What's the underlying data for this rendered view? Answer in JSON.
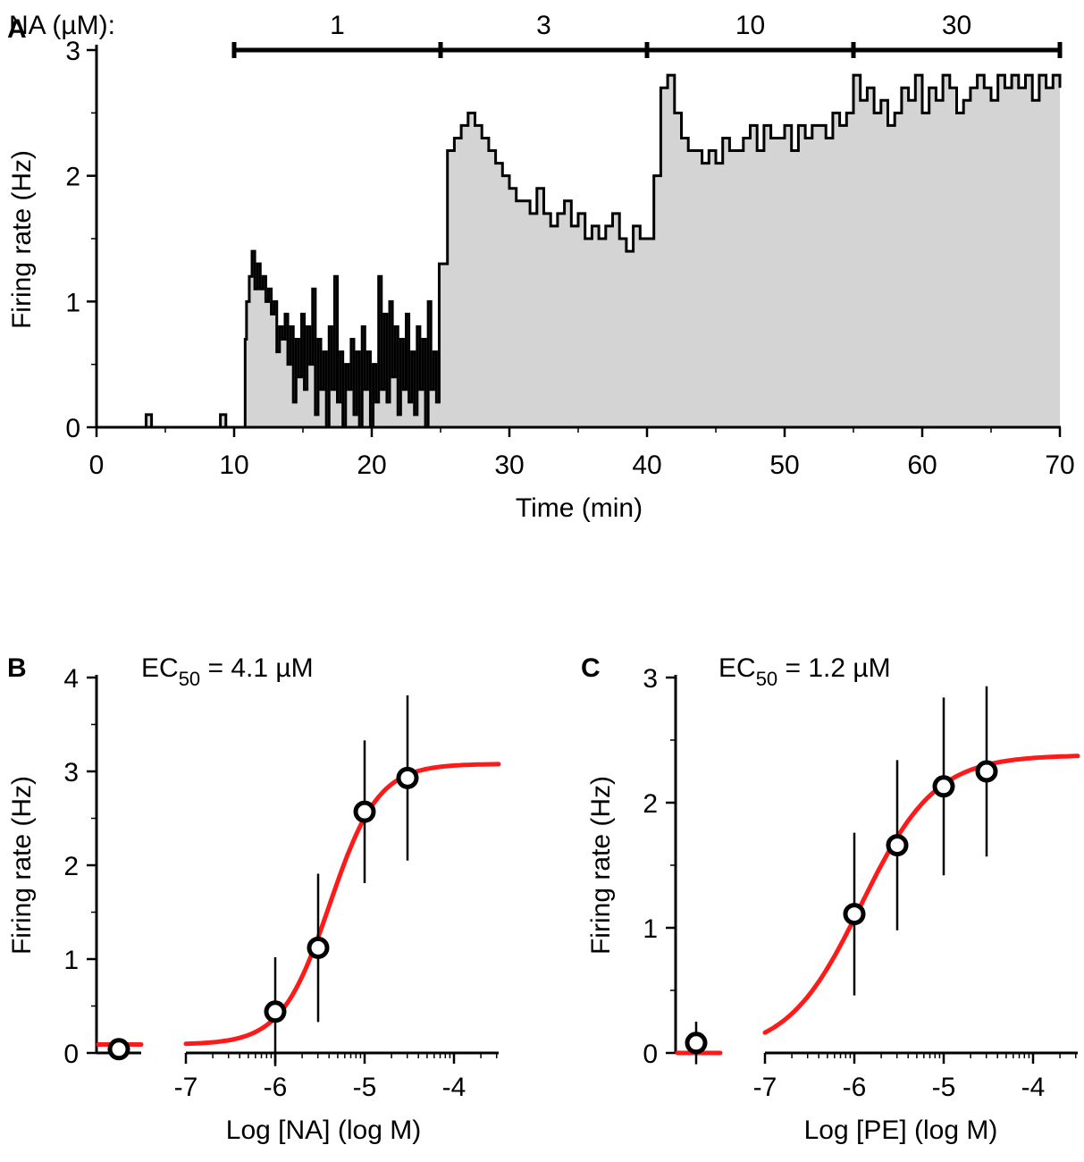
{
  "chart_data": [
    {
      "panel": "A",
      "type": "area",
      "xlabel": "Time (min)",
      "ylabel": "Firing rate (Hz)",
      "xlim": [
        0,
        70
      ],
      "ylim": [
        0,
        3
      ],
      "xticks": [
        "0",
        "10",
        "20",
        "30",
        "40",
        "50",
        "60",
        "70"
      ],
      "yticks": [
        "0",
        "1",
        "2",
        "3"
      ],
      "application_label": "NA (µM):",
      "applications": [
        {
          "label": "1",
          "start": 10,
          "end": 25
        },
        {
          "label": "3",
          "start": 25,
          "end": 40
        },
        {
          "label": "10",
          "start": 40,
          "end": 55
        },
        {
          "label": "30",
          "start": 55,
          "end": 70
        }
      ],
      "trace": {
        "t": [
          0,
          3.6,
          3.7,
          3.9,
          4.0,
          9.0,
          9.1,
          9.3,
          9.4,
          10.8,
          10.9,
          11.1,
          11.3,
          11.5,
          11.7,
          11.9,
          12.1,
          12.3,
          12.5,
          12.7,
          12.9,
          13.1,
          13.3,
          13.5,
          13.7,
          13.9,
          14.1,
          14.3,
          14.5,
          14.7,
          14.9,
          15.1,
          15.3,
          15.5,
          15.7,
          15.9,
          16.1,
          16.3,
          16.5,
          16.7,
          16.9,
          17.1,
          17.3,
          17.5,
          17.7,
          17.9,
          18.1,
          18.3,
          18.5,
          18.7,
          18.9,
          19.1,
          19.3,
          19.5,
          19.7,
          19.9,
          20.1,
          20.3,
          20.5,
          20.7,
          20.9,
          21.1,
          21.3,
          21.5,
          21.7,
          21.9,
          22.1,
          22.3,
          22.5,
          22.7,
          22.9,
          23.1,
          23.3,
          23.5,
          23.7,
          23.9,
          24.1,
          24.3,
          24.5,
          24.7,
          24.9,
          25.5,
          26.0,
          26.5,
          27.0,
          27.5,
          28.0,
          28.5,
          29.0,
          29.5,
          30.0,
          30.5,
          31.0,
          31.5,
          32.0,
          32.5,
          33.0,
          33.5,
          34.0,
          34.5,
          35.0,
          35.5,
          36.0,
          36.5,
          37.0,
          37.5,
          38.0,
          38.5,
          39.0,
          39.5,
          40.0,
          40.5,
          41.0,
          41.5,
          42.0,
          42.5,
          43.0,
          43.5,
          44.0,
          44.5,
          45.0,
          45.5,
          46.0,
          46.5,
          47.0,
          47.5,
          48.0,
          48.5,
          49.0,
          49.5,
          50.0,
          50.5,
          51.0,
          51.5,
          52.0,
          52.5,
          53.0,
          53.5,
          54.0,
          54.5,
          55.0,
          55.5,
          56.0,
          56.5,
          57.0,
          57.5,
          58.0,
          58.5,
          59.0,
          59.5,
          60.0,
          60.5,
          61.0,
          61.5,
          62.0,
          62.5,
          63.0,
          63.5,
          64.0,
          64.5,
          65.0,
          65.5,
          66.0,
          66.5,
          67.0,
          67.5,
          68.0,
          68.5,
          69.0,
          69.5,
          70.0
        ],
        "rate": [
          0,
          0.1,
          0.1,
          0.1,
          0,
          0.1,
          0.1,
          0.1,
          0,
          0.7,
          1.0,
          1.2,
          1.4,
          1.1,
          1.3,
          1.1,
          1.2,
          1.0,
          1.1,
          0.9,
          1.0,
          0.6,
          0.8,
          0.7,
          0.9,
          0.5,
          0.8,
          0.2,
          0.7,
          0.4,
          0.9,
          0.3,
          0.8,
          0.5,
          1.1,
          0.1,
          0.7,
          0.3,
          0.6,
          0.0,
          0.8,
          0.3,
          1.2,
          0.2,
          0.6,
          0.0,
          0.5,
          0.3,
          0.7,
          0.1,
          0.6,
          0.0,
          0.8,
          0.3,
          0.6,
          0.0,
          0.5,
          0.2,
          1.2,
          0.3,
          0.9,
          0.2,
          1.0,
          0.4,
          0.8,
          0.1,
          0.7,
          0.3,
          0.9,
          0.2,
          0.6,
          0.1,
          0.8,
          0.3,
          0.7,
          0.0,
          1.0,
          0.3,
          0.6,
          0.2,
          1.3,
          2.2,
          2.3,
          2.4,
          2.5,
          2.4,
          2.3,
          2.2,
          2.1,
          2.0,
          1.9,
          1.8,
          1.8,
          1.7,
          1.9,
          1.7,
          1.6,
          1.7,
          1.8,
          1.6,
          1.7,
          1.5,
          1.6,
          1.5,
          1.6,
          1.7,
          1.5,
          1.4,
          1.6,
          1.5,
          1.5,
          2.0,
          2.7,
          2.8,
          2.5,
          2.3,
          2.2,
          2.2,
          2.1,
          2.2,
          2.1,
          2.3,
          2.2,
          2.2,
          2.3,
          2.4,
          2.2,
          2.4,
          2.3,
          2.3,
          2.4,
          2.2,
          2.4,
          2.3,
          2.4,
          2.4,
          2.3,
          2.5,
          2.4,
          2.5,
          2.8,
          2.6,
          2.7,
          2.5,
          2.6,
          2.4,
          2.5,
          2.7,
          2.6,
          2.8,
          2.5,
          2.7,
          2.6,
          2.8,
          2.7,
          2.5,
          2.6,
          2.7,
          2.8,
          2.7,
          2.6,
          2.8,
          2.7,
          2.8,
          2.7,
          2.8,
          2.6,
          2.8,
          2.7,
          2.8,
          2.7
        ]
      }
    },
    {
      "panel": "B",
      "type": "scatter",
      "annotation": {
        "prefix": "EC",
        "sub": "50",
        "suffix": " = 4.1 µM"
      },
      "xlabel": "Log [NA] (log M)",
      "ylabel": "Firing rate (Hz)",
      "xlim": [
        -7,
        -3.5
      ],
      "ylim": [
        0,
        4
      ],
      "xticks": [
        "-7",
        "-6",
        "-5",
        "-4"
      ],
      "yticks": [
        "0",
        "1",
        "2",
        "3",
        "4"
      ],
      "control": {
        "y": 0.04,
        "err": 0
      },
      "points": [
        {
          "x": -6.0,
          "y": 0.44,
          "err": 0.58
        },
        {
          "x": -5.52,
          "y": 1.12,
          "err": 0.79
        },
        {
          "x": -5.0,
          "y": 2.57,
          "err": 0.76
        },
        {
          "x": -4.52,
          "y": 2.93,
          "err": 0.88
        }
      ],
      "fit": {
        "bottom": 0.09,
        "top": 3.08,
        "logEC50": -5.39,
        "hill": 1.6
      }
    },
    {
      "panel": "C",
      "type": "scatter",
      "annotation": {
        "prefix": "EC",
        "sub": "50",
        "suffix": " = 1.2 µM"
      },
      "xlabel": "Log [PE] (log M)",
      "ylabel": "Firing rate (Hz)",
      "xlim": [
        -7,
        -3.5
      ],
      "ylim": [
        0,
        3
      ],
      "xticks": [
        "-7",
        "-6",
        "-5",
        "-4"
      ],
      "yticks": [
        "0",
        "1",
        "2",
        "3"
      ],
      "control": {
        "y": 0.08,
        "err": 0.17
      },
      "points": [
        {
          "x": -6.0,
          "y": 1.11,
          "err": 0.65
        },
        {
          "x": -5.52,
          "y": 1.66,
          "err": 0.68
        },
        {
          "x": -5.0,
          "y": 2.13,
          "err": 0.71
        },
        {
          "x": -4.52,
          "y": 2.25,
          "err": 0.68
        }
      ],
      "fit": {
        "bottom": 0.0,
        "top": 2.38,
        "logEC50": -5.92,
        "hill": 1.05
      }
    }
  ]
}
